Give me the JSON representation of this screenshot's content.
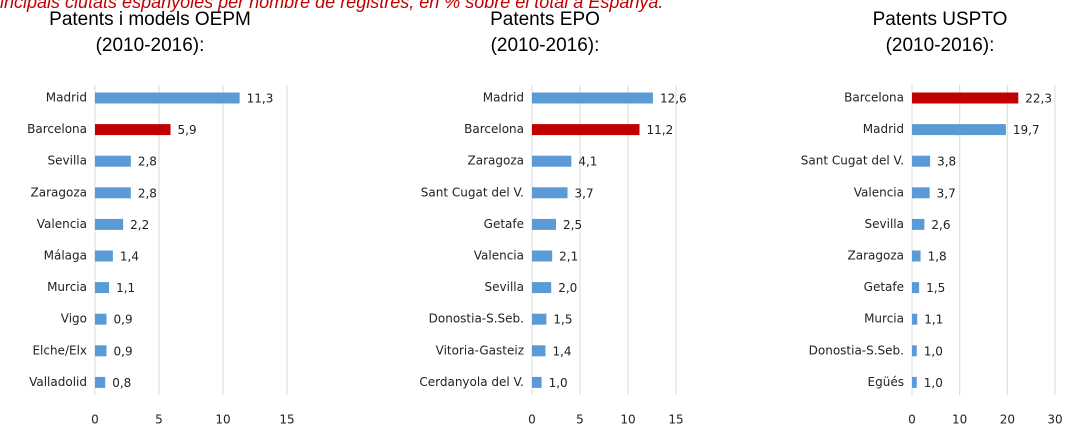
{
  "header": {
    "title": "incipals ciutats espanyoles per nombre de registres, en % sobre el total a Espanya."
  },
  "chart_data": [
    {
      "type": "bar",
      "title": "Patents i models OEPM",
      "subtitle": "(2010-2016):",
      "categories": [
        "Madrid",
        "Barcelona",
        "Sevilla",
        "Zaragoza",
        "Valencia",
        "Málaga",
        "Murcia",
        "Vigo",
        "Elche/Elx",
        "Valladolid"
      ],
      "values": [
        11.3,
        5.9,
        2.8,
        2.8,
        2.2,
        1.4,
        1.1,
        0.9,
        0.9,
        0.8
      ],
      "value_labels": [
        "11,3",
        "5,9",
        "2,8",
        "2,8",
        "2,2",
        "1,4",
        "1,1",
        "0,9",
        "0,9",
        "0,8"
      ],
      "colors": [
        "#5b9bd5",
        "#c00000",
        "#5b9bd5",
        "#5b9bd5",
        "#5b9bd5",
        "#5b9bd5",
        "#5b9bd5",
        "#5b9bd5",
        "#5b9bd5",
        "#5b9bd5"
      ],
      "xlim": [
        0,
        15
      ],
      "xticks": [
        0,
        5,
        10,
        15
      ],
      "grid": true
    },
    {
      "type": "bar",
      "title": "Patents EPO",
      "subtitle": "(2010-2016):",
      "categories": [
        "Madrid",
        "Barcelona",
        "Zaragoza",
        "Sant Cugat del V.",
        "Getafe",
        "Valencia",
        "Sevilla",
        "Donostia-S.Seb.",
        "Vitoria-Gasteiz",
        "Cerdanyola del V."
      ],
      "values": [
        12.6,
        11.2,
        4.1,
        3.7,
        2.5,
        2.1,
        2.0,
        1.5,
        1.4,
        1.0
      ],
      "value_labels": [
        "12,6",
        "11,2",
        "4,1",
        "3,7",
        "2,5",
        "2,1",
        "2,0",
        "1,5",
        "1,4",
        "1,0"
      ],
      "colors": [
        "#5b9bd5",
        "#c00000",
        "#5b9bd5",
        "#5b9bd5",
        "#5b9bd5",
        "#5b9bd5",
        "#5b9bd5",
        "#5b9bd5",
        "#5b9bd5",
        "#5b9bd5"
      ],
      "xlim": [
        0,
        15
      ],
      "xticks": [
        0,
        5,
        10,
        15
      ],
      "grid": true
    },
    {
      "type": "bar",
      "title": "Patents USPTO",
      "subtitle": "(2010-2016):",
      "categories": [
        "Barcelona",
        "Madrid",
        "Sant Cugat del V.",
        "Valencia",
        "Sevilla",
        "Zaragoza",
        "Getafe",
        "Murcia",
        "Donostia-S.Seb.",
        "Egüés"
      ],
      "values": [
        22.3,
        19.7,
        3.8,
        3.7,
        2.6,
        1.8,
        1.5,
        1.1,
        1.0,
        1.0
      ],
      "value_labels": [
        "22,3",
        "19,7",
        "3,8",
        "3,7",
        "2,6",
        "1,8",
        "1,5",
        "1,1",
        "1,0",
        "1,0"
      ],
      "colors": [
        "#c00000",
        "#5b9bd5",
        "#5b9bd5",
        "#5b9bd5",
        "#5b9bd5",
        "#5b9bd5",
        "#5b9bd5",
        "#5b9bd5",
        "#5b9bd5",
        "#5b9bd5"
      ],
      "xlim": [
        0,
        30
      ],
      "xticks": [
        0,
        10,
        20,
        30
      ],
      "grid": true
    }
  ]
}
